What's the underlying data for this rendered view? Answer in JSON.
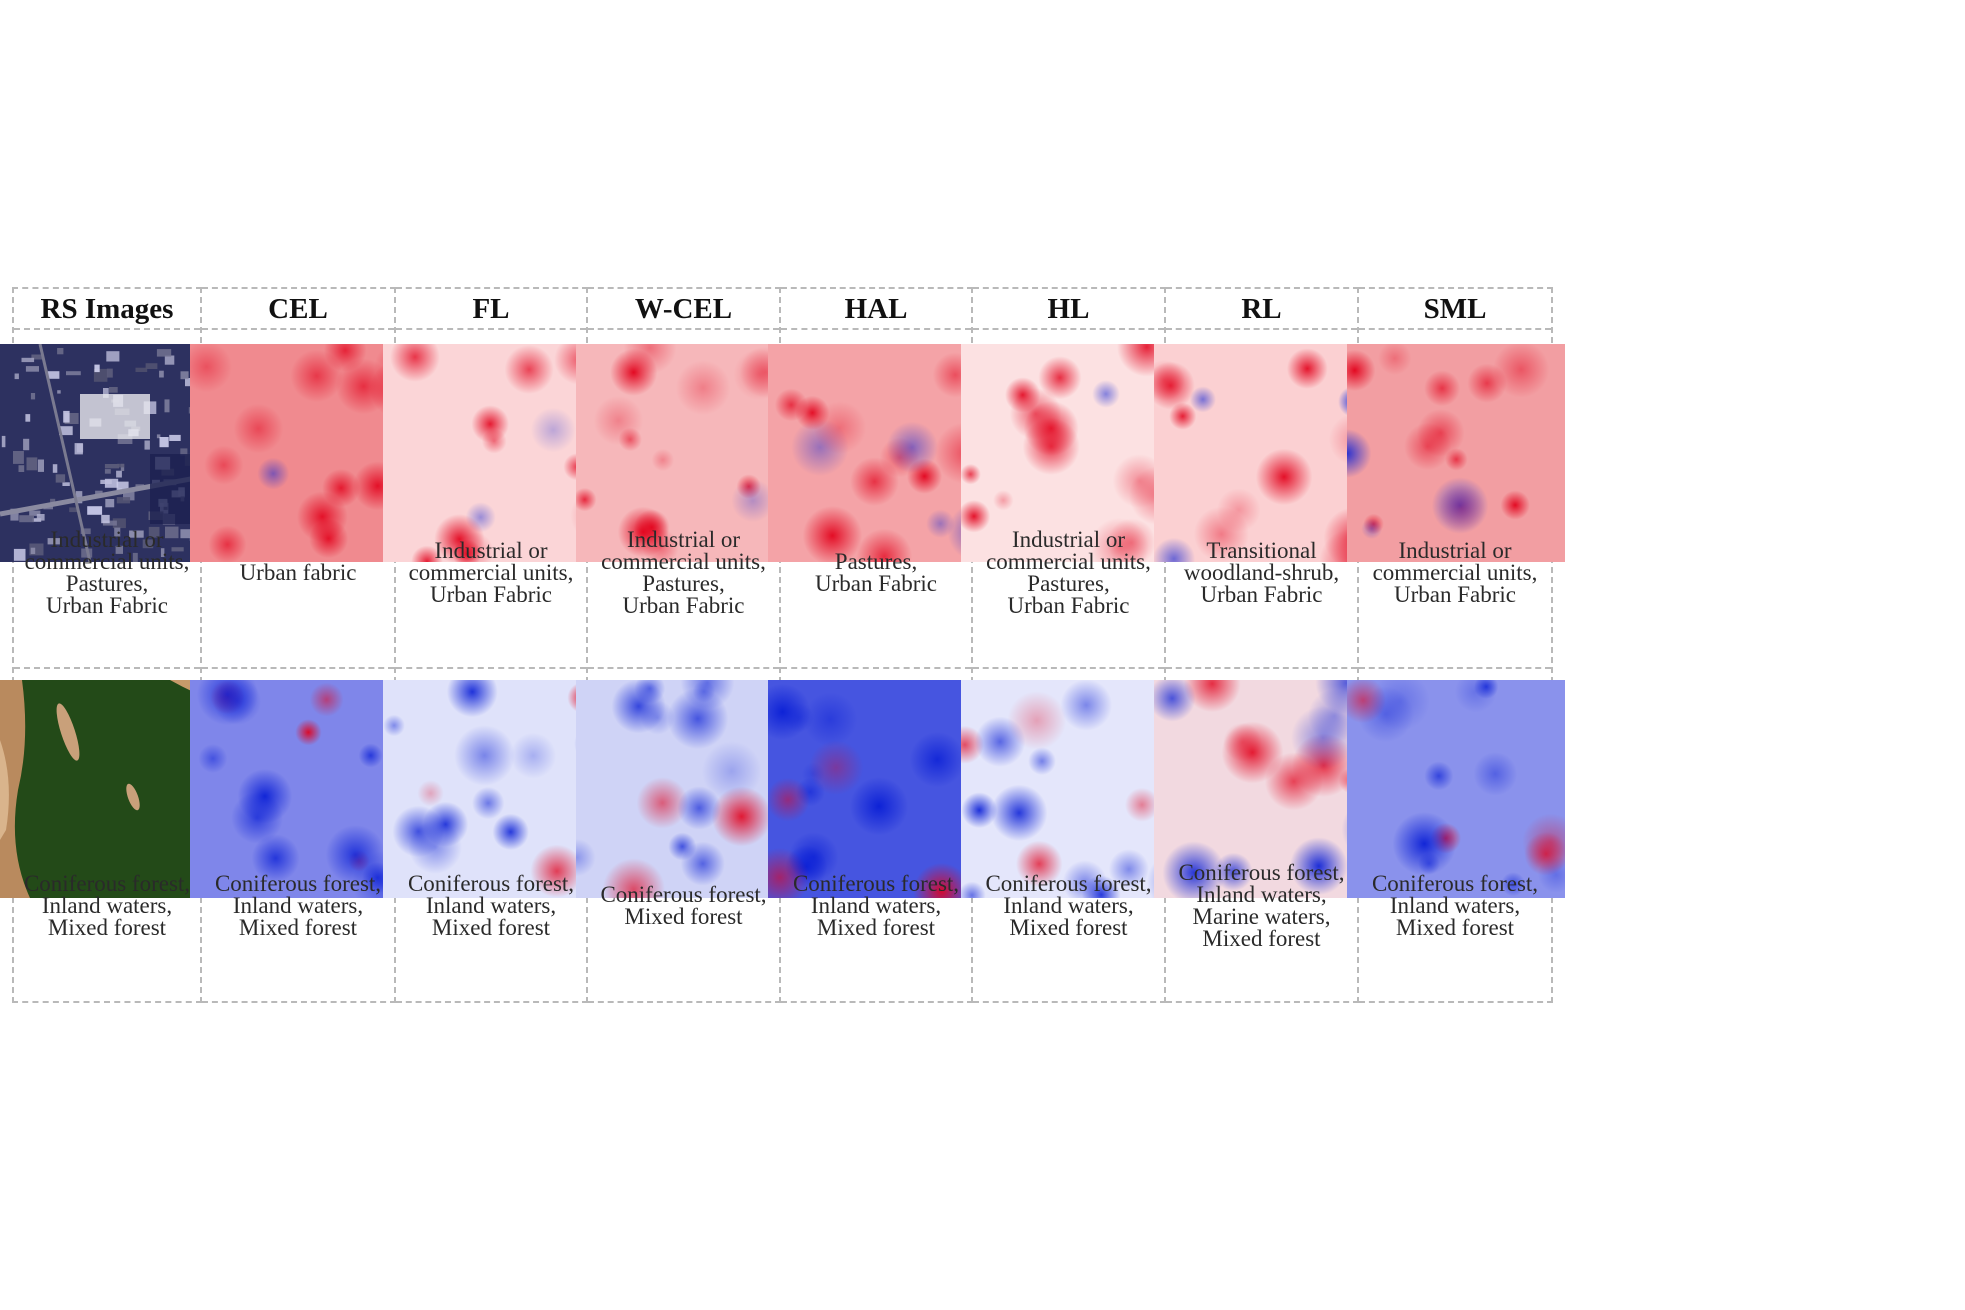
{
  "figure": {
    "columns": [
      {
        "title": "RS Images",
        "top_caption": [
          "Industrial or",
          "commercial units,",
          "Pastures,",
          "Urban Fabric"
        ],
        "bottom_caption": [
          "Coniferous forest,",
          "Inland waters,",
          "Mixed forest"
        ]
      },
      {
        "title": "CEL",
        "top_caption": [
          "Urban fabric"
        ],
        "bottom_caption": [
          "Coniferous forest,",
          "Inland waters,",
          "Mixed forest"
        ]
      },
      {
        "title": "FL",
        "top_caption": [
          "Industrial or",
          "commercial units,",
          "Urban Fabric"
        ],
        "bottom_caption": [
          "Coniferous forest,",
          "Inland waters,",
          "Mixed forest"
        ]
      },
      {
        "title": "W-CEL",
        "top_caption": [
          "Industrial or",
          "commercial units,",
          "Pastures,",
          "Urban Fabric"
        ],
        "bottom_caption": [
          "Coniferous forest,",
          "Mixed forest"
        ]
      },
      {
        "title": "HAL",
        "top_caption": [
          "Pastures,",
          "Urban Fabric"
        ],
        "bottom_caption": [
          "Coniferous forest,",
          "Inland waters,",
          "Mixed forest"
        ]
      },
      {
        "title": "HL",
        "top_caption": [
          "Industrial or",
          "commercial units,",
          "Pastures,",
          "Urban Fabric"
        ],
        "bottom_caption": [
          "Coniferous forest,",
          "Inland waters,",
          "Mixed forest"
        ]
      },
      {
        "title": "RL",
        "top_caption": [
          "Transitional",
          "woodland-shrub,",
          "Urban Fabric"
        ],
        "bottom_caption": [
          "Coniferous forest,",
          "Inland waters,",
          "Marine waters,",
          "Mixed forest"
        ]
      },
      {
        "title": "SML",
        "top_caption": [
          "Industrial or",
          "commercial units,",
          "Urban Fabric"
        ],
        "bottom_caption": [
          "Coniferous forest,",
          "Inland waters,",
          "Mixed forest"
        ]
      }
    ],
    "colors": {
      "positive": "#e2001a",
      "negative": "#0a1fd6",
      "border": "#b9b9b9"
    }
  }
}
